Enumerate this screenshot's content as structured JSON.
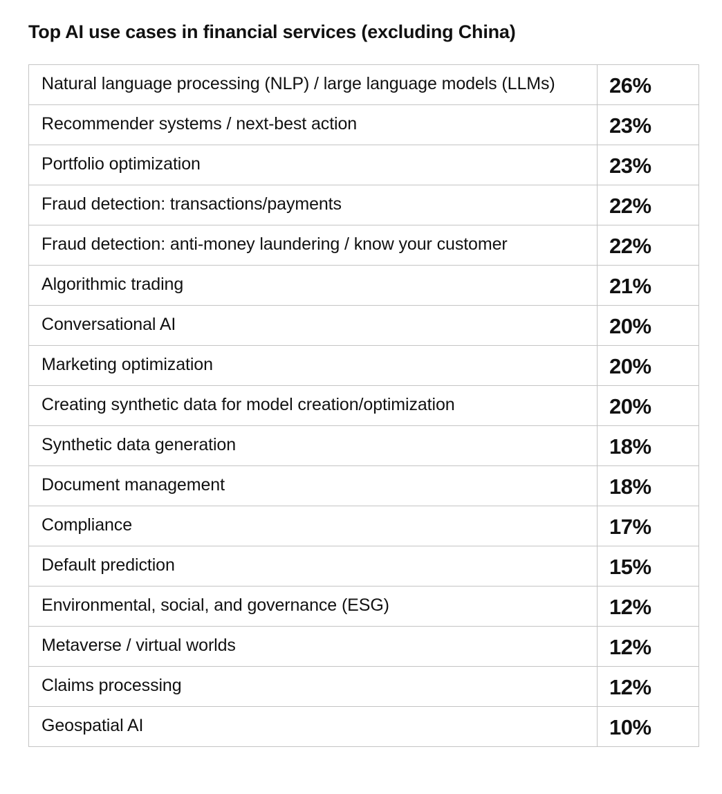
{
  "title": "Top AI use cases in financial services (excluding China)",
  "rows": [
    {
      "label": "Natural language processing (NLP) / large language models (LLMs)",
      "value": "26%"
    },
    {
      "label": "Recommender systems / next-best action",
      "value": "23%"
    },
    {
      "label": "Portfolio optimization",
      "value": "23%"
    },
    {
      "label": "Fraud detection: transactions/payments",
      "value": "22%"
    },
    {
      "label": "Fraud detection: anti-money laundering / know your customer",
      "value": "22%"
    },
    {
      "label": "Algorithmic trading",
      "value": "21%"
    },
    {
      "label": "Conversational AI",
      "value": "20%"
    },
    {
      "label": "Marketing optimization",
      "value": "20%"
    },
    {
      "label": "Creating synthetic data for model creation/optimization",
      "value": "20%"
    },
    {
      "label": "Synthetic data generation",
      "value": "18%"
    },
    {
      "label": "Document management",
      "value": "18%"
    },
    {
      "label": "Compliance",
      "value": "17%"
    },
    {
      "label": "Default prediction",
      "value": "15%"
    },
    {
      "label": "Environmental, social, and governance (ESG)",
      "value": "12%"
    },
    {
      "label": "Metaverse / virtual worlds",
      "value": "12%"
    },
    {
      "label": "Claims processing",
      "value": "12%"
    },
    {
      "label": "Geospatial AI",
      "value": "10%"
    }
  ],
  "colors": {
    "text": "#111111",
    "border": "#c4c4c4",
    "background": "#ffffff"
  }
}
